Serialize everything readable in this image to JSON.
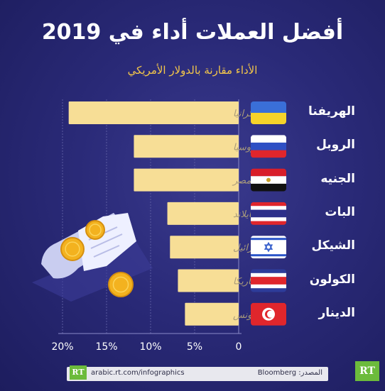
{
  "header": {
    "title": "أفضل العملات أداء في 2019",
    "subtitle": "الأداء مقارنة بالدولار الأمريكي"
  },
  "chart_data": {
    "type": "bar",
    "orientation": "horizontal",
    "title": "أفضل العملات أداء في 2019",
    "subtitle": "الأداء مقارنة بالدولار الأمريكي",
    "categories": [
      "الهريفنا",
      "الروبل",
      "الجنيه",
      "البات",
      "الشيكل",
      "الكولون",
      "الدينار"
    ],
    "countries": [
      "أوكرانيا",
      "روسيا",
      "مصر",
      "تايلاند",
      "إسرائيل",
      "كوستاريكا",
      "تونس"
    ],
    "flags": [
      "ukraine-flag",
      "russia-flag",
      "egypt-flag",
      "thailand-flag",
      "israel-flag",
      "costa-rica-flag",
      "tunisia-flag"
    ],
    "values": [
      19.3,
      11.9,
      11.9,
      8.1,
      7.8,
      6.9,
      6.1
    ],
    "xticks": [
      "0",
      "5%",
      "10%",
      "15%",
      "20%"
    ],
    "xlim": [
      0,
      20
    ],
    "grid": true,
    "bar_color": "#f7de96"
  },
  "footer": {
    "url": "arabic.rt.com/infographics",
    "source": "المصدر: Bloomberg",
    "logo_text": "RT"
  },
  "colors": {
    "background": "#2a2a78",
    "accent": "#f3c64a",
    "bar": "#f7de96",
    "logo": "#6cbb3c"
  }
}
